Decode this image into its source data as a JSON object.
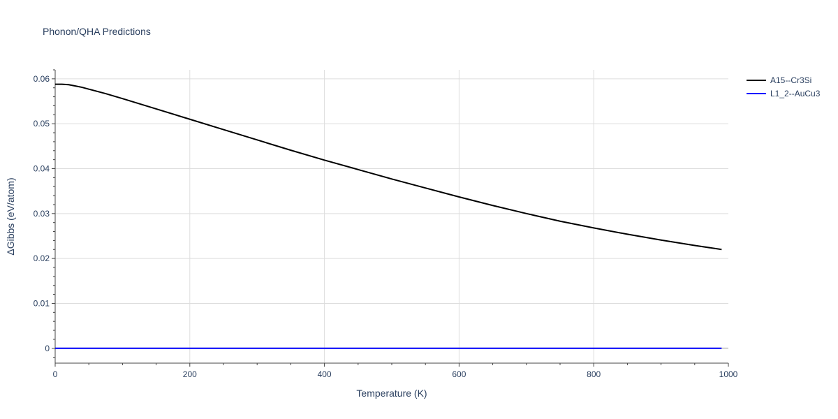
{
  "chart_data": {
    "type": "line",
    "title": "Phonon/QHA Predictions",
    "xlabel": "Temperature (K)",
    "ylabel": "ΔGibbs (eV/atom)",
    "xlim": [
      0,
      1000
    ],
    "ylim": [
      -0.0033,
      0.062
    ],
    "xticks": [
      0,
      200,
      400,
      600,
      800,
      1000
    ],
    "xtick_labels": [
      "0",
      "200",
      "400",
      "600",
      "800",
      "1000"
    ],
    "yticks": [
      0,
      0.01,
      0.02,
      0.03,
      0.04,
      0.05,
      0.06
    ],
    "ytick_labels": [
      "0",
      "0.01",
      "0.02",
      "0.03",
      "0.04",
      "0.05",
      "0.06"
    ],
    "grid": true,
    "legend_position": "top-right",
    "series": [
      {
        "name": "A15--Cr3Si",
        "color": "#000000",
        "x": [
          0,
          10,
          20,
          30,
          40,
          50,
          75,
          100,
          150,
          200,
          250,
          300,
          350,
          400,
          450,
          500,
          550,
          600,
          650,
          700,
          750,
          800,
          850,
          900,
          950,
          990
        ],
        "y": [
          0.0588,
          0.0588,
          0.0587,
          0.0584,
          0.0581,
          0.0577,
          0.0567,
          0.0556,
          0.0533,
          0.051,
          0.0487,
          0.0464,
          0.0441,
          0.0419,
          0.0398,
          0.0377,
          0.0357,
          0.0337,
          0.0318,
          0.03,
          0.0283,
          0.0268,
          0.0254,
          0.0241,
          0.0229,
          0.022
        ]
      },
      {
        "name": "L1_2--AuCu3",
        "color": "#0000ff",
        "x": [
          0,
          990
        ],
        "y": [
          0,
          0
        ]
      }
    ]
  }
}
